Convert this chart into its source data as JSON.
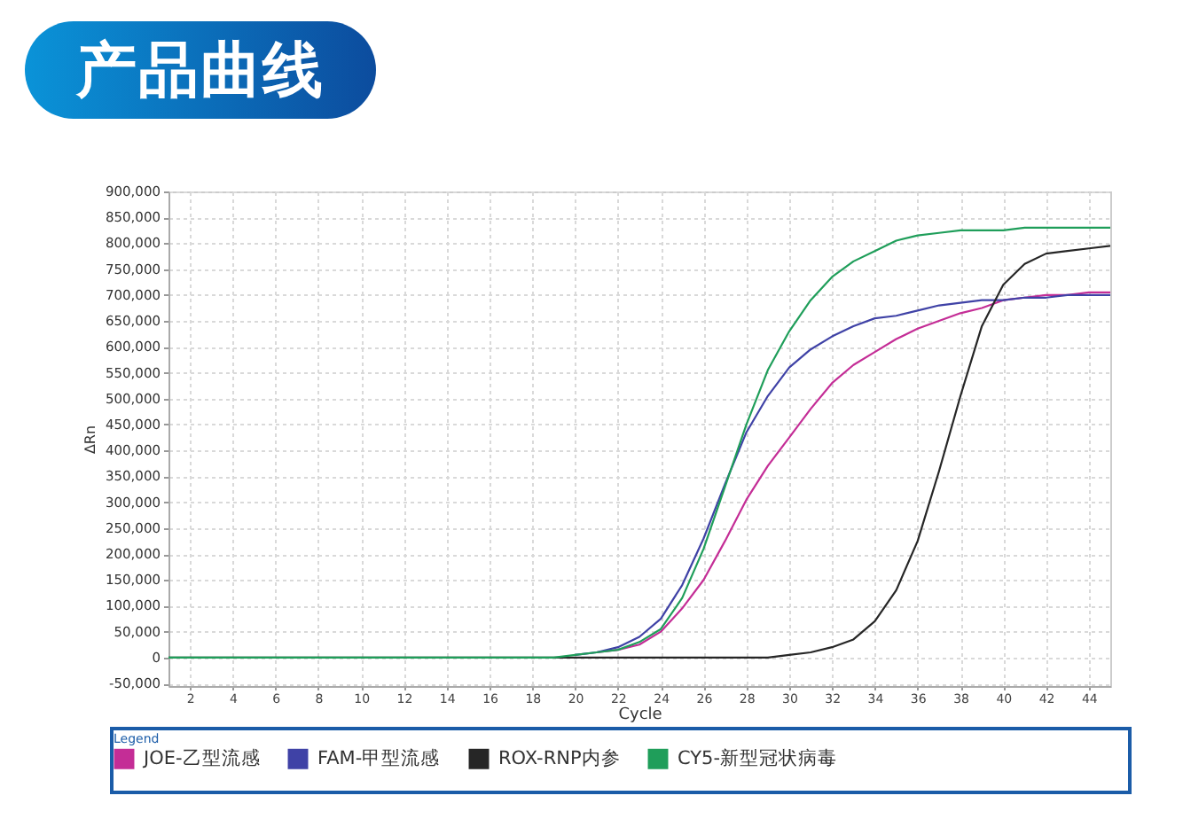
{
  "chart_data": {
    "type": "line",
    "title": "产品曲线",
    "xlabel": "Cycle",
    "ylabel": "ΔRn",
    "legend_title": "Legend",
    "x": [
      1,
      2,
      3,
      4,
      5,
      6,
      7,
      8,
      9,
      10,
      11,
      12,
      13,
      14,
      15,
      16,
      17,
      18,
      19,
      20,
      21,
      22,
      23,
      24,
      25,
      26,
      27,
      28,
      29,
      30,
      31,
      32,
      33,
      34,
      35,
      36,
      37,
      38,
      39,
      40,
      41,
      42,
      43,
      44,
      45
    ],
    "series": [
      {
        "name": "JOE-乙型流感",
        "color": "#c42d96",
        "values": [
          null,
          null,
          null,
          null,
          null,
          null,
          null,
          null,
          null,
          null,
          null,
          null,
          null,
          null,
          null,
          null,
          null,
          null,
          null,
          null,
          10000,
          15000,
          25000,
          50000,
          95000,
          150000,
          225000,
          305000,
          370000,
          425000,
          480000,
          530000,
          565000,
          590000,
          615000,
          635000,
          650000,
          665000,
          675000,
          690000,
          695000,
          700000,
          700000,
          705000,
          705000
        ]
      },
      {
        "name": "FAM-甲型流感",
        "color": "#3f42a6",
        "values": [
          null,
          null,
          null,
          null,
          null,
          null,
          null,
          null,
          null,
          null,
          null,
          null,
          null,
          null,
          null,
          null,
          null,
          null,
          null,
          5000,
          10000,
          20000,
          40000,
          75000,
          140000,
          230000,
          335000,
          435000,
          505000,
          560000,
          595000,
          620000,
          640000,
          655000,
          660000,
          670000,
          680000,
          685000,
          690000,
          690000,
          695000,
          695000,
          700000,
          700000,
          700000
        ]
      },
      {
        "name": "ROX-RNP内参",
        "color": "#262626",
        "values": [
          0,
          0,
          0,
          0,
          0,
          0,
          0,
          0,
          0,
          0,
          0,
          0,
          0,
          0,
          0,
          0,
          0,
          0,
          0,
          0,
          0,
          0,
          0,
          0,
          0,
          0,
          0,
          0,
          0,
          5000,
          10000,
          20000,
          35000,
          70000,
          130000,
          225000,
          360000,
          505000,
          640000,
          720000,
          760000,
          780000,
          785000,
          790000,
          795000
        ]
      },
      {
        "name": "CY5-新型冠状病毒",
        "color": "#1f9e5a",
        "values": [
          0,
          0,
          0,
          0,
          0,
          0,
          0,
          0,
          0,
          0,
          0,
          0,
          0,
          0,
          0,
          0,
          0,
          0,
          0,
          5000,
          10000,
          15000,
          30000,
          55000,
          115000,
          210000,
          330000,
          450000,
          555000,
          630000,
          690000,
          735000,
          765000,
          785000,
          805000,
          815000,
          820000,
          825000,
          825000,
          825000,
          830000,
          830000,
          830000,
          830000,
          830000
        ]
      }
    ],
    "xlim": [
      1,
      45
    ],
    "xticks": [
      2,
      4,
      6,
      8,
      10,
      12,
      14,
      16,
      18,
      20,
      22,
      24,
      26,
      28,
      30,
      32,
      34,
      36,
      38,
      40,
      42,
      44
    ],
    "ylim": [
      -55000,
      900000
    ],
    "yticks": [
      {
        "value": -50000,
        "label": "-50,000"
      },
      0,
      {
        "value": 50000,
        "label": "50,000"
      },
      {
        "value": 100000,
        "label": "100,000"
      },
      {
        "value": 150000,
        "label": "150,000"
      },
      {
        "value": 200000,
        "label": "200,000"
      },
      {
        "value": 250000,
        "label": "250,000"
      },
      {
        "value": 300000,
        "label": "300,000"
      },
      {
        "value": 350000,
        "label": "350,000"
      },
      {
        "value": 400000,
        "label": "400,000"
      },
      {
        "value": 450000,
        "label": "450,000"
      },
      {
        "value": 500000,
        "label": "500,000"
      },
      {
        "value": 550000,
        "label": "550,000"
      },
      {
        "value": 600000,
        "label": "600,000"
      },
      {
        "value": 650000,
        "label": "650,000"
      },
      {
        "value": 700000,
        "label": "700,000"
      },
      {
        "value": 750000,
        "label": "750,000"
      },
      {
        "value": 800000,
        "label": "800,000"
      },
      {
        "value": 850000,
        "label": "850,000"
      },
      {
        "value": 900000,
        "label": "900,000"
      }
    ],
    "grid": true,
    "legend": "bottom",
    "line_style": "solid"
  }
}
